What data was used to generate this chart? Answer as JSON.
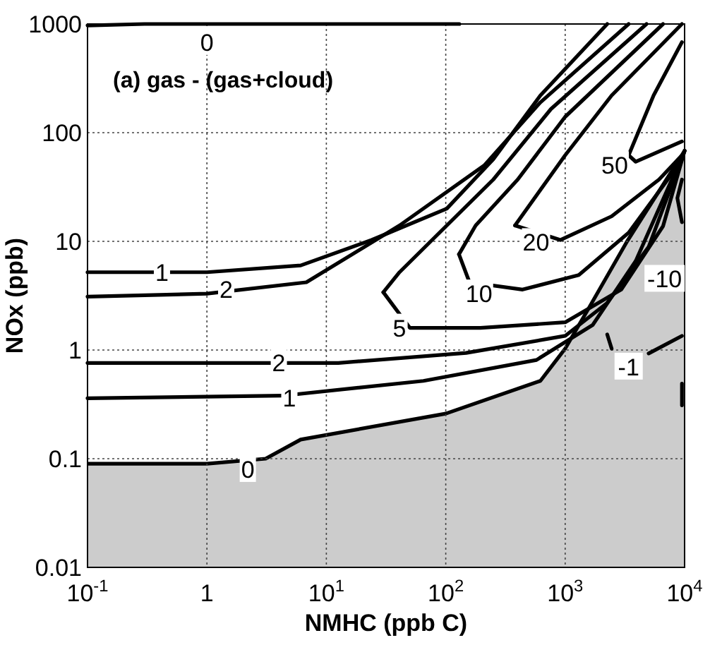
{
  "chart_data": {
    "type": "line",
    "title": "(a) gas -  (gas+cloud)",
    "xlabel": "NMHC (ppb C)",
    "ylabel": "NOx (ppb)",
    "log": "xy",
    "grid": true,
    "xlim": [
      0.1,
      10000
    ],
    "xticks": [
      {
        "value": 0.1,
        "label": "10$^{-1}$"
      },
      1,
      {
        "value": 10,
        "label": "10$^{1}$"
      },
      {
        "value": 100,
        "label": "10$^{2}$"
      },
      {
        "value": 1000,
        "label": "10$^{3}$"
      },
      {
        "value": 10000,
        "label": "10$^{4}$"
      }
    ],
    "ylim": [
      0.01,
      1000
    ],
    "yticks": [
      0.01,
      0.1,
      1,
      10,
      100,
      1000
    ],
    "series": [
      {
        "type": "area",
        "color": "#cccccc",
        "x": [
          0.1,
          1,
          3.1,
          6.1,
          100,
          620,
          1000,
          1600,
          3300,
          10000
        ],
        "values": [
          0.09,
          0.09,
          0.1,
          0.15,
          0.26,
          0.52,
          1.03,
          2.5,
          10,
          68
        ]
      },
      {
        "color": "#000000",
        "x": [
          0.1,
          0.3,
          130
        ],
        "values": [
          970,
          1000,
          1000
        ]
      },
      {
        "color": "#000000",
        "x": [
          0.1,
          4.3,
          65,
          575,
          1700,
          3900,
          10000
        ],
        "values": [
          0.36,
          0.38,
          0.52,
          0.81,
          1.7,
          6.6,
          68
        ]
      },
      {
        "color": "#000000",
        "x": [
          0.1,
          12.6,
          148,
          1000,
          2240,
          5000,
          10000
        ],
        "values": [
          0.76,
          0.76,
          0.94,
          1.35,
          2.7,
          8.9,
          68
        ]
      },
      {
        "color": "#000000",
        "x": [
          0.1,
          1,
          6.1,
          24,
          102,
          250,
          620,
          2250
        ],
        "values": [
          5.2,
          5.2,
          6,
          10.3,
          20,
          57,
          220,
          1000
        ]
      },
      {
        "color": "#000000",
        "x": [
          0.1,
          1,
          6.8,
          41,
          210,
          620,
          3400
        ],
        "values": [
          3.1,
          3.3,
          4.2,
          14,
          50,
          190,
          1000
        ]
      },
      {
        "color": "#000000",
        "x": [
          30,
          41,
          102,
          250,
          760,
          4800
        ],
        "values": [
          3.4,
          5.2,
          14,
          37,
          165,
          1000
        ]
      },
      {
        "color": "#000000",
        "x": [
          30,
          50,
          195,
          1000,
          2950,
          6600,
          10000
        ],
        "values": [
          3.4,
          1.6,
          1.6,
          1.8,
          3.6,
          13.8,
          68
        ]
      },
      {
        "color": "#000000",
        "x": [
          129,
          178,
          400,
          1000,
          6600
        ],
        "values": [
          7.6,
          14,
          37,
          140,
          1000
        ]
      },
      {
        "color": "#000000",
        "x": [
          129,
          158,
          440,
          1300,
          3400,
          7600,
          10000
        ],
        "values": [
          7.6,
          4.2,
          3.6,
          4.9,
          12,
          40,
          68
        ]
      },
      {
        "color": "#000000",
        "x": [
          380,
          1000,
          2450,
          9500
        ],
        "values": [
          14,
          62,
          220,
          1000
        ]
      },
      {
        "color": "#000000",
        "x": [
          380,
          910,
          2450,
          6100,
          9500
        ],
        "values": [
          14,
          10.3,
          17,
          37,
          62
        ]
      },
      {
        "color": "#000000",
        "x": [
          3400,
          5500,
          9500
        ],
        "values": [
          62,
          220,
          680
        ]
      },
      {
        "color": "#000000",
        "x": [
          3400,
          3900,
          9500
        ],
        "values": [
          62,
          54,
          83
        ]
      },
      {
        "color": "#000000",
        "x": [
          2250,
          2450
        ],
        "values": [
          1.39,
          1.03
        ]
      },
      {
        "color": "#000000",
        "x": [
          5000,
          9500
        ],
        "values": [
          0.93,
          1.35
        ]
      },
      {
        "color": "#000000",
        "x": [
          9500,
          9500
        ],
        "values": [
          0.49,
          0.31
        ]
      },
      {
        "color": "#000000",
        "x": [
          9500,
          8700,
          9500
        ],
        "values": [
          37,
          25,
          15
        ]
      }
    ],
    "annotations": [
      {
        "text": "0",
        "x": 1,
        "y": 680
      },
      {
        "text": "1",
        "x": 0.42,
        "y": 5.2
      },
      {
        "text": "2",
        "x": 1.45,
        "y": 3.6
      },
      {
        "text": "5",
        "x": 41,
        "y": 1.6
      },
      {
        "text": "10",
        "x": 190,
        "y": 3.3
      },
      {
        "text": "20",
        "x": 570,
        "y": 9.8
      },
      {
        "text": "50",
        "x": 2600,
        "y": 50
      },
      {
        "text": "-10",
        "x": 6800,
        "y": 4.5
      },
      {
        "text": "2",
        "x": 4,
        "y": 0.76
      },
      {
        "text": "1",
        "x": 4.9,
        "y": 0.36
      },
      {
        "text": "0",
        "x": 2.2,
        "y": 0.08
      },
      {
        "text": "-1",
        "x": 3400,
        "y": 0.7
      }
    ]
  }
}
